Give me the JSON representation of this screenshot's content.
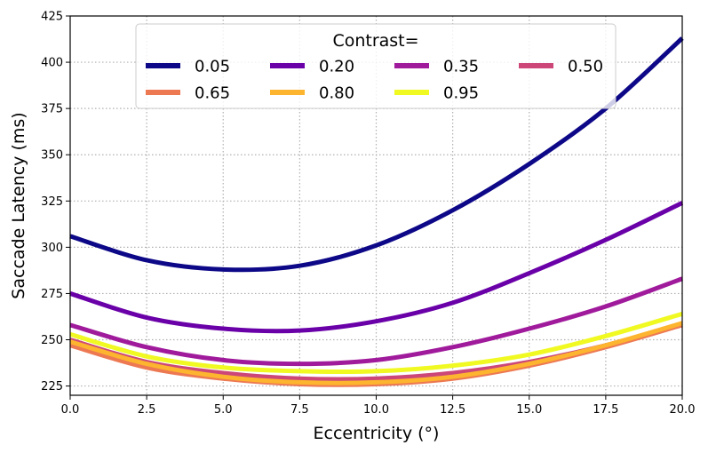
{
  "chart_data": {
    "type": "line",
    "title": "",
    "xlabel": "Eccentricity (°)",
    "ylabel": "Saccade Latency (ms)",
    "xlim": [
      0,
      20
    ],
    "ylim": [
      220,
      425
    ],
    "xticks": [
      0,
      2.5,
      5,
      7.5,
      10,
      12.5,
      15,
      17.5,
      20
    ],
    "xtick_labels": [
      "0.0",
      "2.5",
      "5.0",
      "7.5",
      "10.0",
      "12.5",
      "15.0",
      "17.5",
      "20.0"
    ],
    "yticks": [
      225,
      250,
      275,
      300,
      325,
      350,
      375,
      400,
      425
    ],
    "ytick_labels": [
      "225",
      "250",
      "275",
      "300",
      "325",
      "350",
      "375",
      "400",
      "425"
    ],
    "grid": true,
    "legend": {
      "title": "Contrast=",
      "placement": "top-center",
      "columns": 4
    },
    "x": [
      0,
      2.5,
      5,
      7.5,
      10,
      12.5,
      15,
      17.5,
      20
    ],
    "series": [
      {
        "name": "0.05",
        "color": "#0d0887",
        "values": [
          306,
          293,
          288,
          290,
          301,
          320,
          345,
          375,
          413
        ]
      },
      {
        "name": "0.20",
        "color": "#6a00a8",
        "values": [
          275,
          262,
          256,
          255,
          260,
          270,
          286,
          304,
          324
        ]
      },
      {
        "name": "0.35",
        "color": "#a01a9c",
        "values": [
          258,
          246,
          239,
          237,
          239,
          246,
          256,
          268,
          283
        ]
      },
      {
        "name": "0.50",
        "color": "#cc4778",
        "values": [
          250,
          238,
          232,
          229,
          229,
          232,
          238,
          247,
          258
        ]
      },
      {
        "name": "0.65",
        "color": "#ed7953",
        "values": [
          247,
          235,
          229,
          226,
          226,
          229,
          236,
          246,
          258
        ]
      },
      {
        "name": "0.80",
        "color": "#fdb42f",
        "values": [
          249,
          237,
          230,
          227,
          227,
          230,
          237,
          247,
          259
        ]
      },
      {
        "name": "0.95",
        "color": "#f0f921",
        "values": [
          253,
          241,
          235,
          233,
          233,
          236,
          242,
          252,
          264
        ]
      }
    ]
  }
}
